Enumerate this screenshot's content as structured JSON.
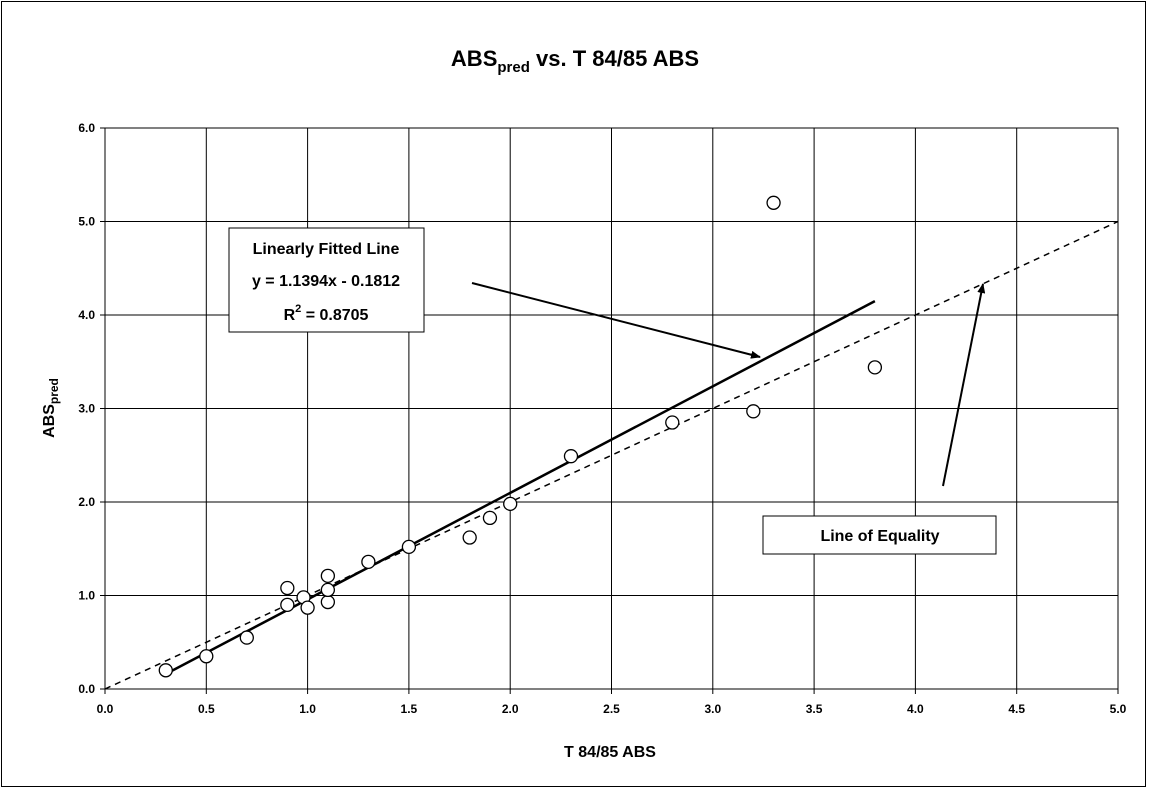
{
  "chart_data": {
    "type": "scatter",
    "title": "ABS",
    "title_subscript": "pred",
    "title_rest": " vs. T 84/85 ABS",
    "xlabel": "T 84/85 ABS",
    "ylabel": "ABS",
    "ylabel_subscript": "pred",
    "xlim": [
      0,
      5
    ],
    "ylim": [
      0,
      6
    ],
    "xticks": [
      "0.0",
      "0.5",
      "1.0",
      "1.5",
      "2.0",
      "2.5",
      "3.0",
      "3.5",
      "4.0",
      "4.5",
      "5.0"
    ],
    "yticks": [
      "0.0",
      "1.0",
      "2.0",
      "3.0",
      "4.0",
      "5.0",
      "6.0"
    ],
    "grid": true,
    "points": [
      {
        "x": 0.3,
        "y": 0.2
      },
      {
        "x": 0.5,
        "y": 0.35
      },
      {
        "x": 0.7,
        "y": 0.55
      },
      {
        "x": 0.9,
        "y": 0.9
      },
      {
        "x": 0.9,
        "y": 1.08
      },
      {
        "x": 0.98,
        "y": 0.98
      },
      {
        "x": 1.0,
        "y": 0.87
      },
      {
        "x": 1.1,
        "y": 0.93
      },
      {
        "x": 1.1,
        "y": 1.06
      },
      {
        "x": 1.1,
        "y": 1.21
      },
      {
        "x": 1.3,
        "y": 1.36
      },
      {
        "x": 1.5,
        "y": 1.52
      },
      {
        "x": 1.8,
        "y": 1.62
      },
      {
        "x": 1.9,
        "y": 1.83
      },
      {
        "x": 2.0,
        "y": 1.98
      },
      {
        "x": 2.3,
        "y": 2.49
      },
      {
        "x": 2.8,
        "y": 2.85
      },
      {
        "x": 3.2,
        "y": 2.97
      },
      {
        "x": 3.3,
        "y": 5.2
      },
      {
        "x": 3.8,
        "y": 3.44
      }
    ],
    "fit_line": {
      "slope": 1.1394,
      "intercept": -0.1812,
      "x_range": [
        0.3,
        3.8
      ]
    },
    "equality_line": {
      "slope": 1,
      "intercept": 0,
      "x_range": [
        0,
        5
      ]
    },
    "annotations": {
      "fit_label_line1": "Linearly Fitted Line",
      "fit_label_line2": "y = 1.1394x - 0.1812",
      "fit_label_r2_prefix": "R",
      "fit_label_r2_sup": "2",
      "fit_label_r2_value": " = 0.8705",
      "equality_label": "Line of Equality"
    }
  }
}
